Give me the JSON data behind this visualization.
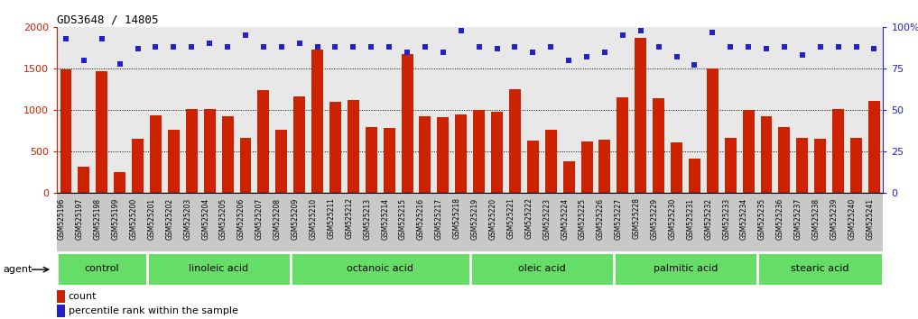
{
  "title": "GDS3648 / 14805",
  "samples": [
    "GSM525196",
    "GSM525197",
    "GSM525198",
    "GSM525199",
    "GSM525200",
    "GSM525201",
    "GSM525202",
    "GSM525203",
    "GSM525204",
    "GSM525205",
    "GSM525206",
    "GSM525207",
    "GSM525208",
    "GSM525209",
    "GSM525210",
    "GSM525211",
    "GSM525212",
    "GSM525213",
    "GSM525214",
    "GSM525215",
    "GSM525216",
    "GSM525217",
    "GSM525218",
    "GSM525219",
    "GSM525220",
    "GSM525221",
    "GSM525222",
    "GSM525223",
    "GSM525224",
    "GSM525225",
    "GSM525226",
    "GSM525227",
    "GSM525228",
    "GSM525229",
    "GSM525230",
    "GSM525231",
    "GSM525232",
    "GSM525233",
    "GSM525234",
    "GSM525235",
    "GSM525236",
    "GSM525237",
    "GSM525238",
    "GSM525239",
    "GSM525240",
    "GSM525241"
  ],
  "counts": [
    1490,
    320,
    1470,
    255,
    650,
    940,
    760,
    1010,
    1010,
    930,
    660,
    1240,
    760,
    1160,
    1730,
    1100,
    1120,
    800,
    780,
    1680,
    930,
    910,
    950,
    1000,
    980,
    1250,
    630,
    760,
    380,
    620,
    640,
    1150,
    1870,
    1140,
    610,
    420,
    1500,
    670,
    1000,
    930,
    800,
    660,
    650,
    1010,
    660,
    1110
  ],
  "percentiles": [
    93,
    80,
    93,
    78,
    87,
    88,
    88,
    88,
    90,
    88,
    95,
    88,
    88,
    90,
    88,
    88,
    88,
    88,
    88,
    85,
    88,
    85,
    98,
    88,
    87,
    88,
    85,
    88,
    80,
    82,
    85,
    95,
    98,
    88,
    82,
    77,
    97,
    88,
    88,
    87,
    88,
    83,
    88,
    88,
    88,
    87
  ],
  "groups": [
    {
      "label": "control",
      "start": 0,
      "end": 5
    },
    {
      "label": "linoleic acid",
      "start": 5,
      "end": 13
    },
    {
      "label": "octanoic acid",
      "start": 13,
      "end": 23
    },
    {
      "label": "oleic acid",
      "start": 23,
      "end": 31
    },
    {
      "label": "palmitic acid",
      "start": 31,
      "end": 39
    },
    {
      "label": "stearic acid",
      "start": 39,
      "end": 46
    }
  ],
  "bar_color": "#cc2200",
  "dot_color": "#2222cc",
  "plot_bg_color": "#e8e8e8",
  "xlabel_bg_color": "#c8c8c8",
  "group_color_light": "#88ee88",
  "group_color_dark": "#55cc55",
  "ylim_left": [
    0,
    2000
  ],
  "ylim_right": [
    0,
    100
  ],
  "left_ticks": [
    0,
    500,
    1000,
    1500,
    2000
  ],
  "right_ticks": [
    0,
    25,
    50,
    75,
    100
  ],
  "left_tick_labels": [
    "0",
    "500",
    "1000",
    "1500",
    "2000"
  ],
  "right_tick_labels": [
    "0",
    "25",
    "50",
    "75",
    "100%"
  ],
  "legend_count_label": "count",
  "legend_pct_label": "percentile rank within the sample",
  "agent_label": "agent"
}
